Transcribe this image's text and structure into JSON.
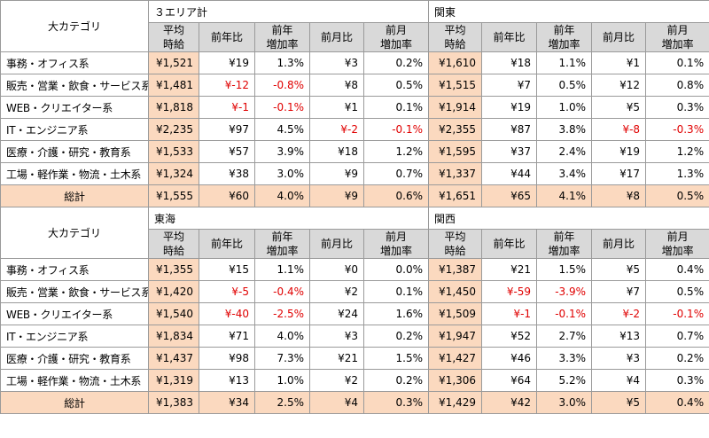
{
  "header": {
    "category_label": "大カテゴリ"
  },
  "columns": {
    "avg_line1": "平均",
    "avg_line2": "時給",
    "yoy": "前年比",
    "yoy_rate_line1": "前年",
    "yoy_rate_line2": "増加率",
    "mom": "前月比",
    "mom_rate_line1": "前月",
    "mom_rate_line2": "増加率"
  },
  "categories": [
    "事務・オフィス系",
    "販売・営業・飲食・サービス系",
    "WEB・クリエイター系",
    "IT・エンジニア系",
    "医療・介護・研究・教育系",
    "工場・軽作業・物流・土木系"
  ],
  "total_label": "総計",
  "blocks": [
    {
      "left": {
        "name": "３エリア計",
        "rows": [
          [
            "¥1,521",
            "¥19",
            "1.3%",
            "¥3",
            "0.2%"
          ],
          [
            "¥1,481",
            "¥-12",
            "-0.8%",
            "¥8",
            "0.5%"
          ],
          [
            "¥1,818",
            "¥-1",
            "-0.1%",
            "¥1",
            "0.1%"
          ],
          [
            "¥2,235",
            "¥97",
            "4.5%",
            "¥-2",
            "-0.1%"
          ],
          [
            "¥1,533",
            "¥57",
            "3.9%",
            "¥18",
            "1.2%"
          ],
          [
            "¥1,324",
            "¥38",
            "3.0%",
            "¥9",
            "0.7%"
          ]
        ],
        "total": [
          "¥1,555",
          "¥60",
          "4.0%",
          "¥9",
          "0.6%"
        ]
      },
      "right": {
        "name": "関東",
        "rows": [
          [
            "¥1,610",
            "¥18",
            "1.1%",
            "¥1",
            "0.1%"
          ],
          [
            "¥1,515",
            "¥7",
            "0.5%",
            "¥12",
            "0.8%"
          ],
          [
            "¥1,914",
            "¥19",
            "1.0%",
            "¥5",
            "0.3%"
          ],
          [
            "¥2,355",
            "¥87",
            "3.8%",
            "¥-8",
            "-0.3%"
          ],
          [
            "¥1,595",
            "¥37",
            "2.4%",
            "¥19",
            "1.2%"
          ],
          [
            "¥1,337",
            "¥44",
            "3.4%",
            "¥17",
            "1.3%"
          ]
        ],
        "total": [
          "¥1,651",
          "¥65",
          "4.1%",
          "¥8",
          "0.5%"
        ]
      }
    },
    {
      "left": {
        "name": "東海",
        "rows": [
          [
            "¥1,355",
            "¥15",
            "1.1%",
            "¥0",
            "0.0%"
          ],
          [
            "¥1,420",
            "¥-5",
            "-0.4%",
            "¥2",
            "0.1%"
          ],
          [
            "¥1,540",
            "¥-40",
            "-2.5%",
            "¥24",
            "1.6%"
          ],
          [
            "¥1,834",
            "¥71",
            "4.0%",
            "¥3",
            "0.2%"
          ],
          [
            "¥1,437",
            "¥98",
            "7.3%",
            "¥21",
            "1.5%"
          ],
          [
            "¥1,319",
            "¥13",
            "1.0%",
            "¥2",
            "0.2%"
          ]
        ],
        "total": [
          "¥1,383",
          "¥34",
          "2.5%",
          "¥4",
          "0.3%"
        ]
      },
      "right": {
        "name": "関西",
        "rows": [
          [
            "¥1,387",
            "¥21",
            "1.5%",
            "¥5",
            "0.4%"
          ],
          [
            "¥1,450",
            "¥-59",
            "-3.9%",
            "¥7",
            "0.5%"
          ],
          [
            "¥1,509",
            "¥-1",
            "-0.1%",
            "¥-2",
            "-0.1%"
          ],
          [
            "¥1,947",
            "¥52",
            "2.7%",
            "¥13",
            "0.7%"
          ],
          [
            "¥1,427",
            "¥46",
            "3.3%",
            "¥3",
            "0.2%"
          ],
          [
            "¥1,306",
            "¥64",
            "5.2%",
            "¥4",
            "0.3%"
          ]
        ],
        "total": [
          "¥1,429",
          "¥42",
          "3.0%",
          "¥5",
          "0.4%"
        ]
      }
    }
  ],
  "colors": {
    "avg_fill": "#fbd9bf",
    "subheader_fill": "#d9d9d9",
    "negative": "#e00000",
    "border": "#9a9a9a"
  }
}
